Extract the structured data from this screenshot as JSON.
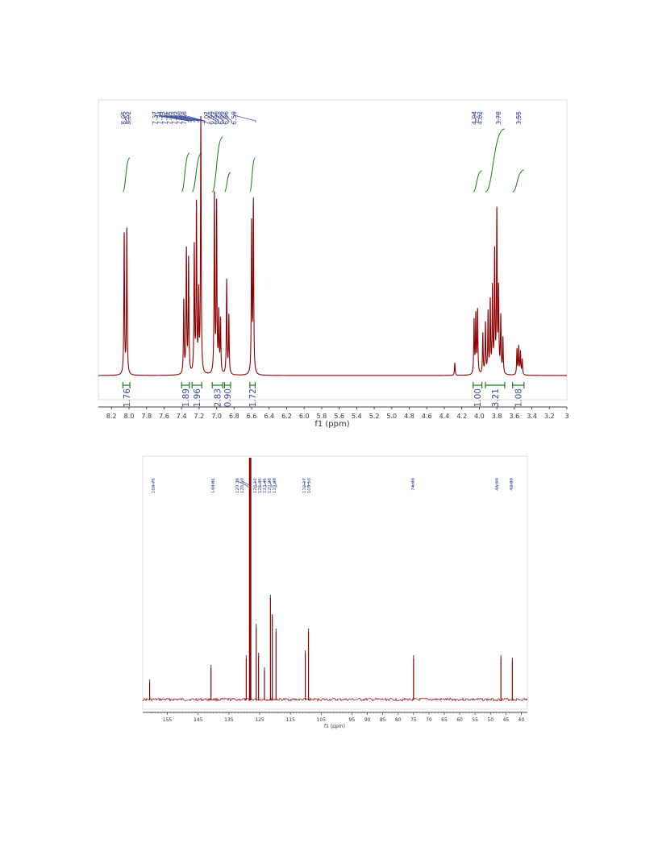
{
  "colors": {
    "spectrum": "#8b0000",
    "peak_marker": "#3030a0",
    "integral_curve": "#1a7a1a",
    "integral_value": "#3a4a9a",
    "peak_label": "#3a4a9a",
    "axis": "#444444"
  },
  "chart_data": [
    {
      "type": "line",
      "title": "",
      "xlabel": "f1 (ppm)",
      "ylabel": "",
      "xlim": [
        8.35,
        3.0
      ],
      "x_reversed": true,
      "grid": false,
      "x_ticks": [
        "8.2",
        "8.0",
        "7.8",
        "7.6",
        "7.4",
        "7.2",
        "7.0",
        "6.8",
        "6.6",
        "6.4",
        "6.2",
        "6.0",
        "5.8",
        "5.6",
        "5.4",
        "5.2",
        "5.0",
        "4.8",
        "4.6",
        "4.4",
        "4.2",
        "4.0",
        "3.8",
        "3.6",
        "3.4",
        "3.2",
        "3"
      ],
      "peak_labels": [
        "8.05",
        "8.02",
        "7.37",
        "7.34",
        "7.32",
        "7.25",
        "7.23",
        "7.20",
        "7.18",
        "7.02",
        "6.99",
        "6.96",
        "6.88",
        "6.86",
        "6.59",
        "4.04",
        "4.02",
        "3.78",
        "3.55"
      ],
      "integrals": [
        {
          "range": [
            8.07,
            7.99
          ],
          "value": "1.76"
        },
        {
          "range": [
            7.4,
            7.31
          ],
          "value": "1.89"
        },
        {
          "range": [
            7.28,
            7.17
          ],
          "value": "1.96"
        },
        {
          "range": [
            7.05,
            6.93
          ],
          "value": "2.83"
        },
        {
          "range": [
            6.91,
            6.84
          ],
          "value": "0.90"
        },
        {
          "range": [
            6.62,
            6.56
          ],
          "value": "1.72"
        },
        {
          "range": [
            4.07,
            3.97
          ],
          "value": "1.00"
        },
        {
          "range": [
            3.93,
            3.71
          ],
          "value": "3.21"
        },
        {
          "range": [
            3.62,
            3.49
          ],
          "value": "1.08"
        }
      ],
      "peaks": [
        {
          "ppm": 8.055,
          "height": 0.55
        },
        {
          "ppm": 8.025,
          "height": 0.57
        },
        {
          "ppm": 7.375,
          "height": 0.29
        },
        {
          "ppm": 7.345,
          "height": 0.49
        },
        {
          "ppm": 7.32,
          "height": 0.45
        },
        {
          "ppm": 7.255,
          "height": 0.5
        },
        {
          "ppm": 7.23,
          "height": 0.66
        },
        {
          "ppm": 7.205,
          "height": 0.3
        },
        {
          "ppm": 7.18,
          "height": 1.0
        },
        {
          "ppm": 7.025,
          "height": 0.7
        },
        {
          "ppm": 7.0,
          "height": 0.66
        },
        {
          "ppm": 6.975,
          "height": 0.23
        },
        {
          "ppm": 6.955,
          "height": 0.21
        },
        {
          "ppm": 6.885,
          "height": 0.37
        },
        {
          "ppm": 6.86,
          "height": 0.23
        },
        {
          "ppm": 6.6,
          "height": 0.59
        },
        {
          "ppm": 6.58,
          "height": 0.67
        },
        {
          "ppm": 4.28,
          "height": 0.05
        },
        {
          "ppm": 4.06,
          "height": 0.21
        },
        {
          "ppm": 4.04,
          "height": 0.23
        },
        {
          "ppm": 4.02,
          "height": 0.25
        },
        {
          "ppm": 3.96,
          "height": 0.16
        },
        {
          "ppm": 3.93,
          "height": 0.2
        },
        {
          "ppm": 3.9,
          "height": 0.24
        },
        {
          "ppm": 3.875,
          "height": 0.28
        },
        {
          "ppm": 3.85,
          "height": 0.33
        },
        {
          "ppm": 3.825,
          "height": 0.47
        },
        {
          "ppm": 3.8,
          "height": 0.63
        },
        {
          "ppm": 3.78,
          "height": 0.32
        },
        {
          "ppm": 3.755,
          "height": 0.22
        },
        {
          "ppm": 3.73,
          "height": 0.14
        },
        {
          "ppm": 3.57,
          "height": 0.1
        },
        {
          "ppm": 3.55,
          "height": 0.11
        },
        {
          "ppm": 3.53,
          "height": 0.09
        },
        {
          "ppm": 3.51,
          "height": 0.06
        }
      ]
    },
    {
      "type": "line",
      "title": "",
      "xlabel": "f1 (ppm)",
      "ylabel": "",
      "xlim": [
        163,
        38
      ],
      "x_reversed": true,
      "grid": false,
      "x_ticks": [
        "155",
        "145",
        "135",
        "125",
        "115",
        "105",
        "95",
        "90",
        "85",
        "80",
        "75",
        "70",
        "65",
        "60",
        "55",
        "50",
        "45",
        "40"
      ],
      "peak_labels": [
        "160.75",
        "140.81",
        "129.36",
        "128.19",
        "126.11",
        "125.35",
        "123.46",
        "120.90",
        "119.68",
        "110.17",
        "109.13",
        "74.99",
        "46.59",
        "42.89"
      ],
      "peaks": [
        {
          "ppm": 160.75,
          "height": 0.07
        },
        {
          "ppm": 140.81,
          "height": 0.13
        },
        {
          "ppm": 129.36,
          "height": 0.17
        },
        {
          "ppm": 128.19,
          "height": 1.0
        },
        {
          "ppm": 128.0,
          "height": 1.0
        },
        {
          "ppm": 126.11,
          "height": 0.3
        },
        {
          "ppm": 125.35,
          "height": 0.18
        },
        {
          "ppm": 123.46,
          "height": 0.12
        },
        {
          "ppm": 121.5,
          "height": 0.42
        },
        {
          "ppm": 120.9,
          "height": 0.34
        },
        {
          "ppm": 119.68,
          "height": 0.28
        },
        {
          "ppm": 110.17,
          "height": 0.19
        },
        {
          "ppm": 109.13,
          "height": 0.28
        },
        {
          "ppm": 74.99,
          "height": 0.17
        },
        {
          "ppm": 46.59,
          "height": 0.17
        },
        {
          "ppm": 42.89,
          "height": 0.16
        }
      ]
    }
  ]
}
